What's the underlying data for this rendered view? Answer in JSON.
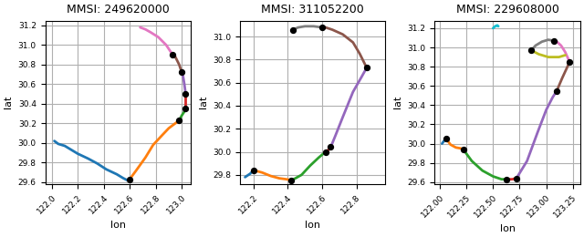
{
  "chart_data": [
    {
      "type": "line",
      "title": "MMSI: 249620000",
      "xlabel": "lon",
      "ylabel": "lat",
      "xlim": [
        121.95,
        123.07
      ],
      "ylim": [
        29.58,
        31.25
      ],
      "xticks": [
        122.0,
        122.2,
        122.4,
        122.6,
        122.8,
        123.0
      ],
      "yticks": [
        29.6,
        29.8,
        30.0,
        30.2,
        30.4,
        30.6,
        30.8,
        31.0,
        31.2
      ],
      "grid": true,
      "series": [
        {
          "color": "#1f77b4",
          "x": [
            122.02,
            122.05,
            122.1,
            122.15,
            122.2,
            122.28,
            122.35,
            122.42,
            122.5,
            122.55,
            122.58,
            122.6
          ],
          "values": [
            30.02,
            29.99,
            29.97,
            29.93,
            29.89,
            29.84,
            29.79,
            29.73,
            29.68,
            29.64,
            29.62,
            29.63
          ]
        },
        {
          "color": "#ff7f0e",
          "x": [
            122.6,
            122.65,
            122.72,
            122.78,
            122.85,
            122.9,
            122.95,
            122.98
          ],
          "values": [
            29.63,
            29.72,
            29.85,
            29.98,
            30.08,
            30.15,
            30.2,
            30.23
          ]
        },
        {
          "color": "#2ca02c",
          "x": [
            122.98,
            123.0,
            123.02,
            123.03
          ],
          "values": [
            30.23,
            30.28,
            30.32,
            30.35
          ]
        },
        {
          "color": "#d62728",
          "x": [
            123.03,
            123.03,
            123.03
          ],
          "values": [
            30.35,
            30.42,
            30.5
          ]
        },
        {
          "color": "#9467bd",
          "x": [
            123.03,
            123.02,
            123.01,
            123.0
          ],
          "values": [
            30.5,
            30.6,
            30.68,
            30.72
          ]
        },
        {
          "color": "#8c564b",
          "x": [
            123.0,
            122.98,
            122.95,
            122.93
          ],
          "values": [
            30.72,
            30.8,
            30.88,
            30.9
          ]
        },
        {
          "color": "#e377c2",
          "x": [
            122.93,
            122.88,
            122.82,
            122.76,
            122.72,
            122.68
          ],
          "values": [
            30.9,
            31.0,
            31.08,
            31.13,
            31.16,
            31.18
          ]
        },
        {
          "type": "scatter",
          "marker": "o",
          "color": "black",
          "x": [
            122.6,
            122.98,
            123.03,
            123.03,
            123.0,
            122.93
          ],
          "values": [
            29.63,
            30.23,
            30.35,
            30.5,
            30.72,
            30.9
          ]
        }
      ]
    },
    {
      "type": "line",
      "title": "MMSI: 311052200",
      "xlabel": "lon",
      "ylabel": "lat",
      "xlim": [
        122.12,
        122.97
      ],
      "ylim": [
        29.72,
        31.14
      ],
      "xticks": [
        122.2,
        122.4,
        122.6,
        122.8
      ],
      "yticks": [
        29.8,
        30.0,
        30.2,
        30.4,
        30.6,
        30.8,
        31.0
      ],
      "grid": true,
      "series": [
        {
          "color": "#1f77b4",
          "x": [
            122.15,
            122.18,
            122.2
          ],
          "values": [
            29.78,
            29.81,
            29.84
          ]
        },
        {
          "color": "#ff7f0e",
          "x": [
            122.2,
            122.25,
            122.3,
            122.35,
            122.4,
            122.42
          ],
          "values": [
            29.84,
            29.82,
            29.79,
            29.77,
            29.76,
            29.75
          ]
        },
        {
          "color": "#2ca02c",
          "x": [
            122.42,
            122.48,
            122.53,
            122.58,
            122.62
          ],
          "values": [
            29.75,
            29.8,
            29.88,
            29.95,
            30.0
          ]
        },
        {
          "color": "#d62728",
          "x": [
            122.62,
            122.64,
            122.65
          ],
          "values": [
            30.0,
            30.02,
            30.04
          ]
        },
        {
          "color": "#9467bd",
          "x": [
            122.65,
            122.68,
            122.72,
            122.78,
            122.83,
            122.86
          ],
          "values": [
            30.04,
            30.15,
            30.3,
            30.52,
            30.65,
            30.73
          ]
        },
        {
          "color": "#8c564b",
          "x": [
            122.86,
            122.82,
            122.78,
            122.72,
            122.66,
            122.62,
            122.6
          ],
          "values": [
            30.73,
            30.85,
            30.95,
            31.02,
            31.06,
            31.08,
            31.08
          ]
        },
        {
          "color": "#7f7f7f",
          "x": [
            122.6,
            122.55,
            122.5,
            122.46,
            122.43
          ],
          "values": [
            31.08,
            31.09,
            31.09,
            31.08,
            31.06
          ]
        },
        {
          "type": "scatter",
          "marker": "o",
          "color": "black",
          "x": [
            122.2,
            122.42,
            122.62,
            122.65,
            122.86,
            122.6,
            122.43
          ],
          "values": [
            29.84,
            29.75,
            30.0,
            30.04,
            30.73,
            31.08,
            31.06
          ]
        }
      ]
    },
    {
      "type": "line",
      "title": "MMSI: 229608000",
      "xlabel": "lon",
      "ylabel": "lat",
      "xlim": [
        121.95,
        123.32
      ],
      "ylim": [
        29.58,
        31.28
      ],
      "xticks": [
        {
          "value": 122.0,
          "label": "122.00"
        },
        {
          "value": 122.25,
          "label": "122.25"
        },
        {
          "value": 122.5,
          "label": "122.50"
        },
        {
          "value": 122.75,
          "label": "122.75"
        },
        {
          "value": 123.0,
          "label": "123.00"
        },
        {
          "value": 123.25,
          "label": "123.25"
        }
      ],
      "yticks": [
        29.6,
        29.8,
        30.0,
        30.2,
        30.4,
        30.6,
        30.8,
        31.0,
        31.2
      ],
      "grid": true,
      "series": [
        {
          "color": "#1f77b4",
          "x": [
            122.02,
            122.04,
            122.06
          ],
          "values": [
            30.0,
            30.03,
            30.05
          ]
        },
        {
          "color": "#ff7f0e",
          "x": [
            122.06,
            122.1,
            122.15,
            122.2,
            122.22
          ],
          "values": [
            30.05,
            29.99,
            29.96,
            29.95,
            29.94
          ]
        },
        {
          "color": "#2ca02c",
          "x": [
            122.22,
            122.3,
            122.4,
            122.5,
            122.58,
            122.63
          ],
          "values": [
            29.94,
            29.82,
            29.72,
            29.66,
            29.63,
            29.63
          ]
        },
        {
          "color": "#d62728",
          "x": [
            122.63,
            122.68,
            122.72
          ],
          "values": [
            29.63,
            29.63,
            29.64
          ]
        },
        {
          "color": "#9467bd",
          "x": [
            122.72,
            122.82,
            122.92,
            123.0,
            123.06,
            123.1
          ],
          "values": [
            29.64,
            29.82,
            30.12,
            30.35,
            30.48,
            30.55
          ]
        },
        {
          "color": "#8c564b",
          "x": [
            123.1,
            123.15,
            123.2,
            123.22
          ],
          "values": [
            30.55,
            30.68,
            30.8,
            30.85
          ]
        },
        {
          "color": "#e377c2",
          "x": [
            123.22,
            123.18,
            123.14,
            123.1,
            123.07
          ],
          "values": [
            30.85,
            30.95,
            31.02,
            31.06,
            31.07
          ]
        },
        {
          "color": "#7f7f7f",
          "x": [
            123.07,
            123.02,
            122.96,
            122.9,
            122.86
          ],
          "values": [
            31.07,
            31.08,
            31.06,
            31.02,
            30.97
          ]
        },
        {
          "color": "#bcbd22",
          "x": [
            122.86,
            122.93,
            123.02,
            123.12,
            123.18
          ],
          "values": [
            30.97,
            30.93,
            30.9,
            30.9,
            30.92
          ]
        },
        {
          "color": "#17becf",
          "x": [
            122.5,
            122.52,
            122.54,
            122.55
          ],
          "values": [
            31.2,
            31.22,
            31.23,
            31.22
          ]
        },
        {
          "type": "scatter",
          "marker": "o",
          "color": "black",
          "x": [
            122.06,
            122.22,
            122.63,
            122.72,
            123.1,
            123.22,
            123.07,
            122.86
          ],
          "values": [
            30.05,
            29.94,
            29.63,
            29.64,
            30.55,
            30.85,
            31.07,
            30.97
          ]
        }
      ]
    }
  ]
}
